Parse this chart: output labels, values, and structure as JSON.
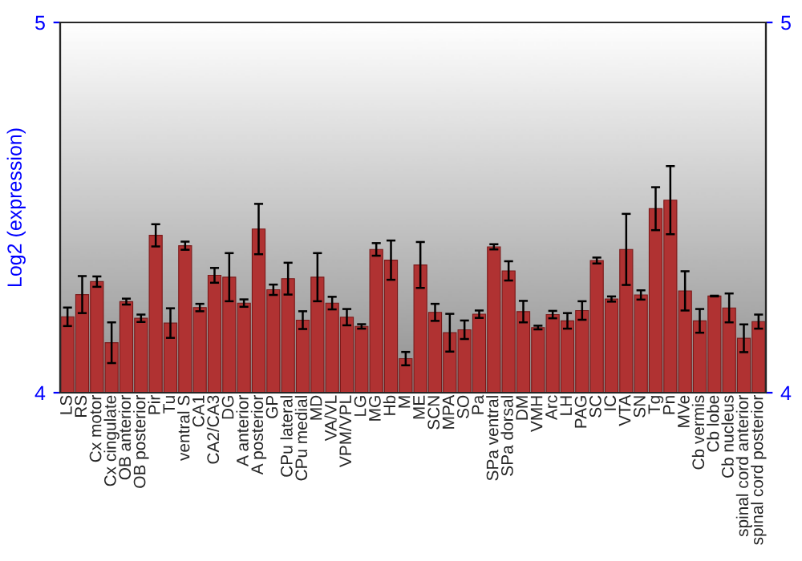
{
  "chart_data": {
    "type": "bar",
    "ylabel": "Log2 (expression)",
    "categories": [
      "LS",
      "RS",
      "Cx motor",
      "Cx cingulate",
      "OB anterior",
      "OB posterior",
      "Pir",
      "Tu",
      "ventral S",
      "CA1",
      "CA2/CA3",
      "DG",
      "A anterior",
      "A posterior",
      "GP",
      "CPu lateral",
      "CPu medial",
      "MD",
      "VA/VL",
      "VPM/VPL",
      "LG",
      "MG",
      "Hb",
      "M",
      "ME",
      "SCN",
      "MPA",
      "SO",
      "Pa",
      "SPa ventral",
      "SPa dorsal",
      "DM",
      "VMH",
      "Arc",
      "LH",
      "PAG",
      "SC",
      "IC",
      "VTA",
      "SN",
      "Tg",
      "Pn",
      "MVe",
      "Cb vermis",
      "Cb lobe",
      "Cb nucleus",
      "spinal cord anterior",
      "spinal cord posterior"
    ],
    "values": [
      4.205,
      4.265,
      4.3,
      4.135,
      4.246,
      4.201,
      4.425,
      4.188,
      4.397,
      4.23,
      4.317,
      4.312,
      4.242,
      4.442,
      4.278,
      4.308,
      4.196,
      4.312,
      4.242,
      4.204,
      4.179,
      4.387,
      4.358,
      4.092,
      4.345,
      4.217,
      4.162,
      4.17,
      4.212,
      4.394,
      4.329,
      4.219,
      4.176,
      4.211,
      4.194,
      4.222,
      4.357,
      4.253,
      4.387,
      4.264,
      4.497,
      4.52,
      4.275,
      4.194,
      4.261,
      4.229,
      4.147,
      4.192
    ],
    "errors": [
      0.025,
      0.05,
      0.014,
      0.055,
      0.008,
      0.01,
      0.03,
      0.04,
      0.011,
      0.01,
      0.02,
      0.065,
      0.01,
      0.068,
      0.014,
      0.043,
      0.024,
      0.065,
      0.017,
      0.022,
      0.006,
      0.017,
      0.053,
      0.018,
      0.062,
      0.023,
      0.051,
      0.025,
      0.01,
      0.007,
      0.026,
      0.029,
      0.005,
      0.01,
      0.021,
      0.025,
      0.008,
      0.007,
      0.096,
      0.0125,
      0.058,
      0.092,
      0.053,
      0.032,
      0.001,
      0.039,
      0.0375,
      0.019
    ],
    "color": "#b03232",
    "ylim": [
      4,
      5
    ],
    "yticks": [
      4,
      5
    ],
    "y2lim": [
      4,
      5
    ],
    "y2ticks": [
      4,
      5
    ],
    "grid": false
  }
}
